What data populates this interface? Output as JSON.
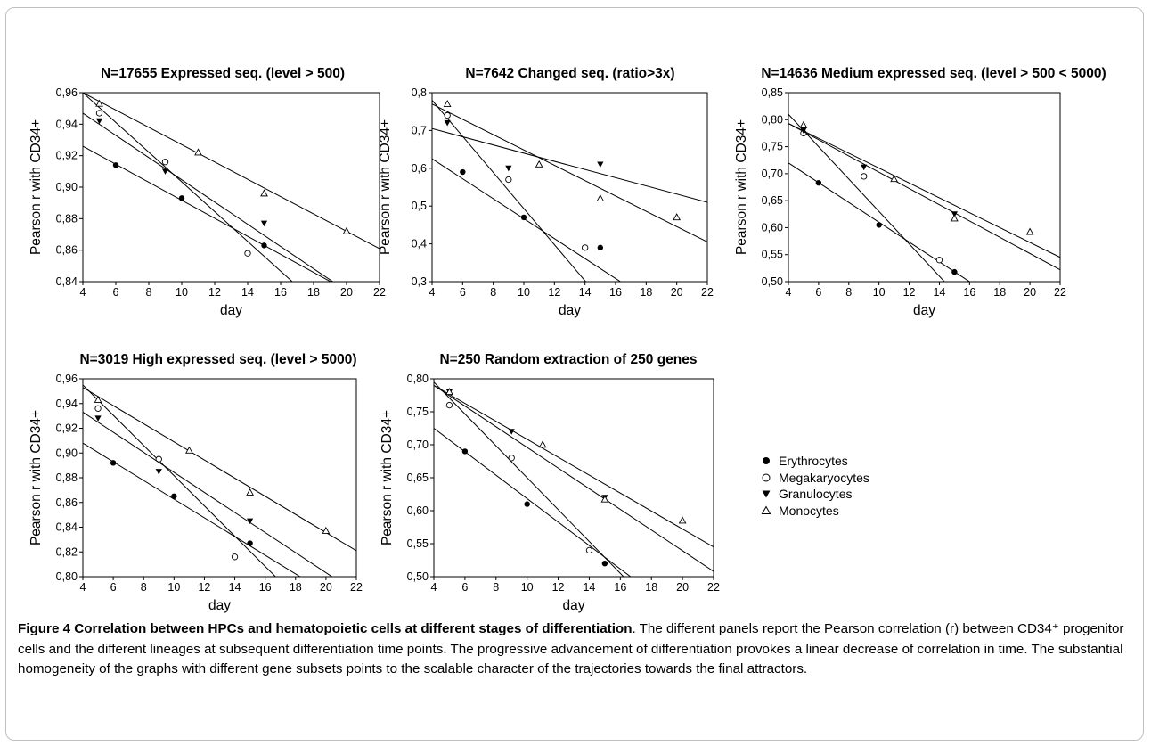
{
  "chart_data": [
    {
      "type": "scatter",
      "title": "N=17655 Expressed seq. (level > 500)",
      "xlabel": "day",
      "ylabel": "Pearson r with CD34+",
      "xlim": [
        4,
        22
      ],
      "ylim": [
        0.84,
        0.96
      ],
      "xticks": [
        "4",
        "6",
        "8",
        "10",
        "12",
        "14",
        "16",
        "18",
        "20",
        "22"
      ],
      "yticks": [
        "0,84",
        "0,86",
        "0,88",
        "0,90",
        "0,92",
        "0,94",
        "0,96"
      ],
      "series": [
        {
          "name": "Erythrocytes",
          "marker": "filled-circle",
          "x": [
            6,
            10,
            15
          ],
          "y": [
            0.914,
            0.893,
            0.863
          ],
          "line": [
            [
              4,
              0.926
            ],
            [
              22,
              0.823
            ]
          ]
        },
        {
          "name": "Megakaryocytes",
          "marker": "open-circle",
          "x": [
            5,
            9,
            14
          ],
          "y": [
            0.947,
            0.916,
            0.858
          ],
          "line": [
            [
              4,
              0.96
            ],
            [
              22,
              0.79
            ]
          ]
        },
        {
          "name": "Granulocytes",
          "marker": "filled-triangle-down",
          "x": [
            5,
            9,
            15
          ],
          "y": [
            0.942,
            0.91,
            0.877
          ],
          "line": [
            [
              4,
              0.947
            ],
            [
              22,
              0.82
            ]
          ]
        },
        {
          "name": "Monocytes",
          "marker": "open-triangle-up",
          "x": [
            5,
            11,
            15,
            20
          ],
          "y": [
            0.953,
            0.922,
            0.896,
            0.872
          ],
          "line": [
            [
              4,
              0.96
            ],
            [
              22,
              0.861
            ]
          ]
        }
      ]
    },
    {
      "type": "scatter",
      "title": "N=7642 Changed seq. (ratio>3x)",
      "xlabel": "day",
      "ylabel": "Pearson r with CD34+",
      "xlim": [
        4,
        22
      ],
      "ylim": [
        0.3,
        0.8
      ],
      "xticks": [
        "4",
        "6",
        "8",
        "10",
        "12",
        "14",
        "16",
        "18",
        "20",
        "22"
      ],
      "yticks": [
        "0,3",
        "0,4",
        "0,5",
        "0,6",
        "0,7",
        "0,8"
      ],
      "series": [
        {
          "name": "Erythrocytes",
          "marker": "filled-circle",
          "x": [
            6,
            10,
            15
          ],
          "y": [
            0.59,
            0.47,
            0.39
          ],
          "line": [
            [
              4,
              0.625
            ],
            [
              22,
              0.15
            ]
          ]
        },
        {
          "name": "Megakaryocytes",
          "marker": "open-circle",
          "x": [
            5,
            9,
            14
          ],
          "y": [
            0.74,
            0.57,
            0.39
          ],
          "line": [
            [
              4,
              0.78
            ],
            [
              22,
              -0.08
            ]
          ]
        },
        {
          "name": "Granulocytes",
          "marker": "filled-triangle-down",
          "x": [
            5,
            9,
            15
          ],
          "y": [
            0.72,
            0.6,
            0.61
          ],
          "line": [
            [
              4,
              0.705
            ],
            [
              22,
              0.51
            ]
          ]
        },
        {
          "name": "Monocytes",
          "marker": "open-triangle-up",
          "x": [
            5,
            11,
            15,
            20
          ],
          "y": [
            0.77,
            0.61,
            0.52,
            0.47
          ],
          "line": [
            [
              4,
              0.77
            ],
            [
              22,
              0.405
            ]
          ]
        }
      ]
    },
    {
      "type": "scatter",
      "title": "N=14636 Medium expressed seq. (level > 500 < 5000)",
      "xlabel": "day",
      "ylabel": "Pearson r with CD34+",
      "xlim": [
        4,
        22
      ],
      "ylim": [
        0.5,
        0.85
      ],
      "xticks": [
        "4",
        "6",
        "8",
        "10",
        "12",
        "14",
        "16",
        "18",
        "20",
        "22"
      ],
      "yticks": [
        "0,50",
        "0,55",
        "0,60",
        "0,65",
        "0,70",
        "0,75",
        "0,80",
        "0,85"
      ],
      "series": [
        {
          "name": "Erythrocytes",
          "marker": "filled-circle",
          "x": [
            6,
            10,
            15
          ],
          "y": [
            0.683,
            0.605,
            0.518
          ],
          "line": [
            [
              4,
              0.72
            ],
            [
              22,
              0.39
            ]
          ]
        },
        {
          "name": "Megakaryocytes",
          "marker": "open-circle",
          "x": [
            5,
            9,
            14
          ],
          "y": [
            0.775,
            0.695,
            0.54
          ],
          "line": [
            [
              4,
              0.81
            ],
            [
              22,
              0.27
            ]
          ]
        },
        {
          "name": "Granulocytes",
          "marker": "filled-triangle-down",
          "x": [
            5,
            9,
            15
          ],
          "y": [
            0.78,
            0.712,
            0.625
          ],
          "line": [
            [
              4,
              0.793
            ],
            [
              22,
              0.522
            ]
          ]
        },
        {
          "name": "Monocytes",
          "marker": "open-triangle-up",
          "x": [
            5,
            11,
            15,
            20
          ],
          "y": [
            0.79,
            0.69,
            0.617,
            0.592
          ],
          "line": [
            [
              4,
              0.793
            ],
            [
              22,
              0.545
            ]
          ]
        }
      ]
    },
    {
      "type": "scatter",
      "title": "N=3019 High expressed seq. (level > 5000)",
      "xlabel": "day",
      "ylabel": "Pearson r with CD34+",
      "xlim": [
        4,
        22
      ],
      "ylim": [
        0.8,
        0.96
      ],
      "xticks": [
        "4",
        "6",
        "8",
        "10",
        "12",
        "14",
        "16",
        "18",
        "20",
        "22"
      ],
      "yticks": [
        "0,80",
        "0,82",
        "0,84",
        "0,86",
        "0,88",
        "0,90",
        "0,92",
        "0,94",
        "0,96"
      ],
      "series": [
        {
          "name": "Erythrocytes",
          "marker": "filled-circle",
          "x": [
            6,
            10,
            15
          ],
          "y": [
            0.892,
            0.865,
            0.827
          ],
          "line": [
            [
              4,
              0.908
            ],
            [
              22,
              0.772
            ]
          ]
        },
        {
          "name": "Megakaryocytes",
          "marker": "open-circle",
          "x": [
            5,
            9,
            14
          ],
          "y": [
            0.936,
            0.895,
            0.816
          ],
          "line": [
            [
              4,
              0.955
            ],
            [
              22,
              0.735
            ]
          ]
        },
        {
          "name": "Granulocytes",
          "marker": "filled-triangle-down",
          "x": [
            5,
            9,
            15
          ],
          "y": [
            0.928,
            0.885,
            0.845
          ],
          "line": [
            [
              4,
              0.933
            ],
            [
              22,
              0.787
            ]
          ]
        },
        {
          "name": "Monocytes",
          "marker": "open-triangle-up",
          "x": [
            5,
            11,
            15,
            20
          ],
          "y": [
            0.943,
            0.902,
            0.868,
            0.837
          ],
          "line": [
            [
              4,
              0.953
            ],
            [
              22,
              0.821
            ]
          ]
        }
      ]
    },
    {
      "type": "scatter",
      "title": "N=250 Random extraction of 250 genes",
      "xlabel": "day",
      "ylabel": "Pearson r with CD34+",
      "xlim": [
        4,
        22
      ],
      "ylim": [
        0.5,
        0.8
      ],
      "xticks": [
        "4",
        "6",
        "8",
        "10",
        "12",
        "14",
        "16",
        "18",
        "20",
        "22"
      ],
      "yticks": [
        "0,50",
        "0,55",
        "0,60",
        "0,65",
        "0,70",
        "0,75",
        "0,80"
      ],
      "series": [
        {
          "name": "Erythrocytes",
          "marker": "filled-circle",
          "x": [
            6,
            10,
            15
          ],
          "y": [
            0.69,
            0.61,
            0.52
          ],
          "line": [
            [
              4,
              0.725
            ],
            [
              22,
              0.405
            ]
          ]
        },
        {
          "name": "Megakaryocytes",
          "marker": "open-circle",
          "x": [
            5,
            9,
            14
          ],
          "y": [
            0.76,
            0.68,
            0.54
          ],
          "line": [
            [
              4,
              0.795
            ],
            [
              22,
              0.36
            ]
          ]
        },
        {
          "name": "Granulocytes",
          "marker": "filled-triangle-down",
          "x": [
            5,
            9,
            15
          ],
          "y": [
            0.78,
            0.72,
            0.62
          ],
          "line": [
            [
              4,
              0.79
            ],
            [
              22,
              0.508
            ]
          ]
        },
        {
          "name": "Monocytes",
          "marker": "open-triangle-up",
          "x": [
            5,
            11,
            15,
            20
          ],
          "y": [
            0.78,
            0.7,
            0.617,
            0.585
          ],
          "line": [
            [
              4,
              0.79
            ],
            [
              22,
              0.545
            ]
          ]
        }
      ]
    }
  ],
  "legend": {
    "items": [
      {
        "label": "Erythrocytes",
        "marker": "filled-circle"
      },
      {
        "label": "Megakaryocytes",
        "marker": "open-circle"
      },
      {
        "label": "Granulocytes",
        "marker": "filled-triangle-down"
      },
      {
        "label": "Monocytes",
        "marker": "open-triangle-up"
      }
    ]
  },
  "caption": {
    "lead": "Figure 4 Correlation between HPCs and hematopoietic cells at different stages of differentiation",
    "body": ". The different panels report the Pearson correlation (r) between CD34⁺ progenitor cells and the different lineages at subsequent differentiation time points. The progressive advancement of differentiation provokes a linear decrease of correlation in time. The substantial homogeneity of the graphs with different gene subsets points to the scalable character of the trajectories towards the final attractors."
  }
}
